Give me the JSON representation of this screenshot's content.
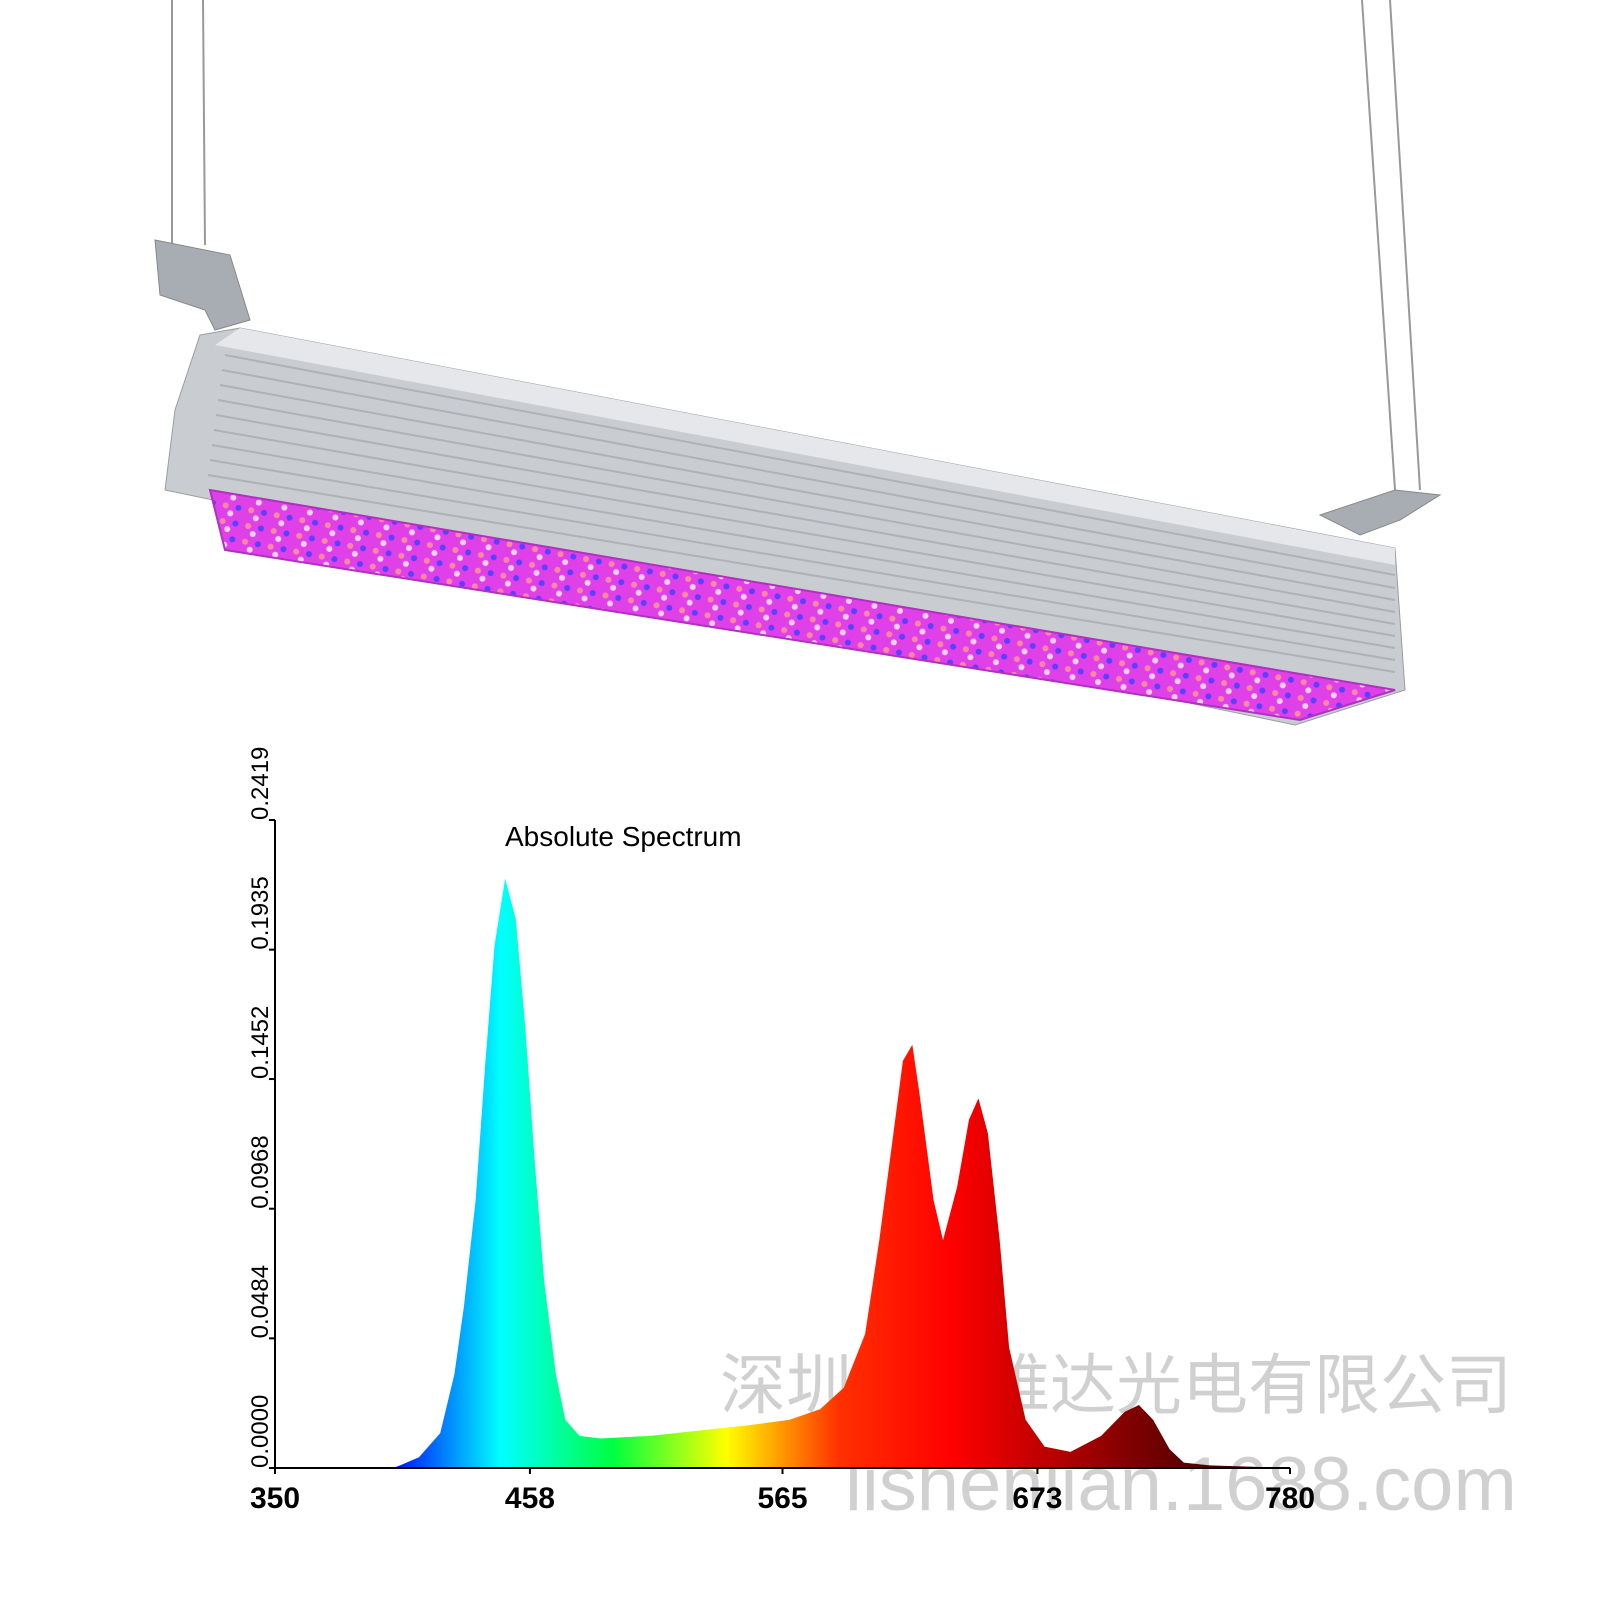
{
  "chart_data": {
    "type": "area",
    "title": "Absolute Spectrum",
    "x": [
      350,
      400,
      403,
      411,
      420,
      426,
      430,
      435,
      439,
      443,
      447.5,
      452,
      456,
      460,
      464,
      469,
      473,
      479,
      488,
      509,
      530,
      551,
      568,
      581,
      591,
      600,
      606,
      612,
      616,
      620,
      623,
      629,
      633,
      639,
      644,
      648,
      652,
      657,
      661,
      668,
      676,
      687,
      700,
      710,
      716,
      722,
      729,
      735,
      746,
      780
    ],
    "values": [
      0,
      0,
      0.001,
      0.004,
      0.013,
      0.035,
      0.06,
      0.1,
      0.15,
      0.195,
      0.22,
      0.205,
      0.165,
      0.115,
      0.07,
      0.035,
      0.018,
      0.012,
      0.011,
      0.012,
      0.014,
      0.016,
      0.018,
      0.022,
      0.03,
      0.05,
      0.085,
      0.125,
      0.152,
      0.158,
      0.14,
      0.1,
      0.085,
      0.105,
      0.13,
      0.138,
      0.125,
      0.085,
      0.045,
      0.018,
      0.008,
      0.006,
      0.012,
      0.021,
      0.0235,
      0.018,
      0.007,
      0.002,
      0.001,
      0
    ],
    "gradient": [
      "#1010c0",
      "#0000ff",
      "#00ffff",
      "#00ff40",
      "#ffff00",
      "#ff3000",
      "#ff0000",
      "#b00000",
      "#600000",
      "#200000"
    ],
    "xlim": [
      350,
      780
    ],
    "xticks": [
      350,
      458,
      565,
      673,
      780
    ],
    "ylim": [
      0,
      0.2419
    ],
    "yticks": [
      {
        "value": 0,
        "label": "0.0000"
      },
      0.0484,
      0.0968,
      0.1452,
      0.1935,
      0.2419
    ]
  },
  "watermark": {
    "company": "深圳市力维达光电有限公司",
    "url": "lishenlian.1688.com"
  }
}
